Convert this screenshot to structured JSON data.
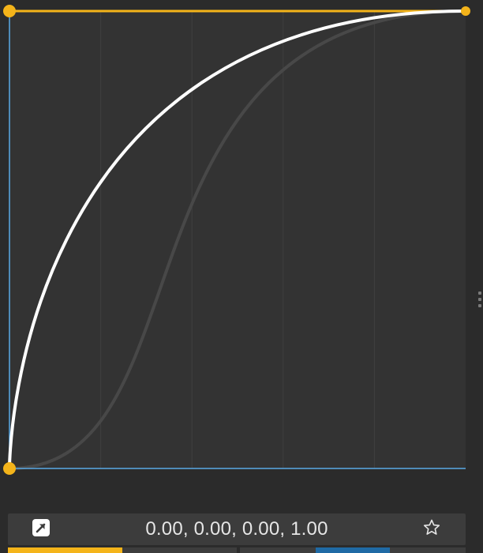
{
  "editor": {
    "name": "cubic-bezier-editor",
    "bezier": [
      0.0,
      0.0,
      0.0,
      1.0
    ],
    "reference_bezier": [
      0.45,
      0.0,
      0.2,
      1.0
    ],
    "colors": {
      "background": "#2b2b2b",
      "grid_area": "#333333",
      "grid_lines": "#404040",
      "axis": "#5aa9e6",
      "handle": "#f4b41a",
      "curve": "#ffffff",
      "reference_curve": "#484848"
    }
  },
  "toolbar": {
    "value_text": "0.00, 0.00, 0.00, 1.00",
    "apply_icon": "external-link-arrow-icon",
    "favorite_icon": "star-outline-icon"
  },
  "presets": [
    {
      "fill_fraction": 0.5,
      "fill_side": "left",
      "color": "#f4b41a"
    },
    {
      "fill_fraction": 0.33,
      "fill_side": "center",
      "color": "#1f6aa5"
    }
  ]
}
